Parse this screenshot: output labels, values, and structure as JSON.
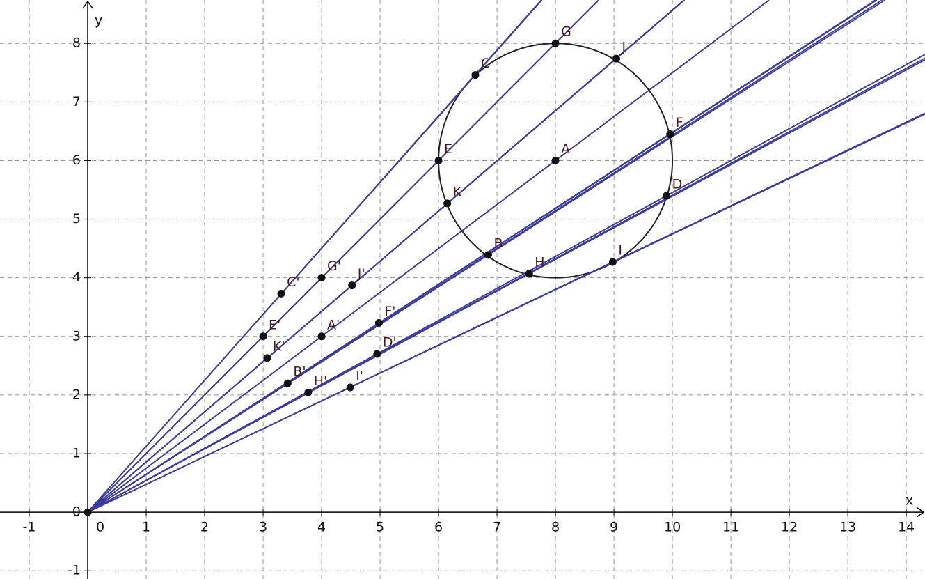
{
  "chart_data": {
    "type": "scatter",
    "x_label": "x",
    "y_label": "y",
    "xlim": [
      -1.5,
      14.32
    ],
    "ylim": [
      -1.14,
      8.74
    ],
    "xticks": [
      -1,
      0,
      1,
      2,
      3,
      4,
      5,
      6,
      7,
      8,
      9,
      10,
      11,
      12,
      13,
      14
    ],
    "yticks": [
      -1,
      0,
      1,
      2,
      3,
      4,
      5,
      6,
      7,
      8
    ],
    "grid": true,
    "circle": {
      "cx": 8,
      "cy": 6,
      "r": 2,
      "color": "#222222"
    },
    "line_color": "#3c3c9c",
    "series": [
      {
        "name": "points",
        "color": "#111111",
        "labels": [
          null,
          "A",
          "G",
          "J",
          "C",
          "E",
          "F",
          "K",
          "D",
          "B",
          "H",
          "I",
          "A'",
          "G'",
          "J'",
          "C'",
          "E'",
          "F'",
          "K'",
          "D'",
          "B'",
          "H'",
          "I'"
        ],
        "x": [
          0,
          8,
          8,
          9.04,
          6.63,
          6,
          9.96,
          6.15,
          9.9,
          6.85,
          7.55,
          8.98,
          4,
          4,
          4.52,
          3.31,
          3,
          4.98,
          3.07,
          4.95,
          3.42,
          3.77,
          4.49
        ],
        "values": [
          0,
          6,
          8,
          7.74,
          7.46,
          6,
          6.45,
          5.27,
          5.4,
          4.39,
          4.07,
          4.27,
          3,
          4,
          3.87,
          3.73,
          3,
          3.23,
          2.63,
          2.7,
          2.2,
          2.04,
          2.13
        ]
      }
    ]
  }
}
